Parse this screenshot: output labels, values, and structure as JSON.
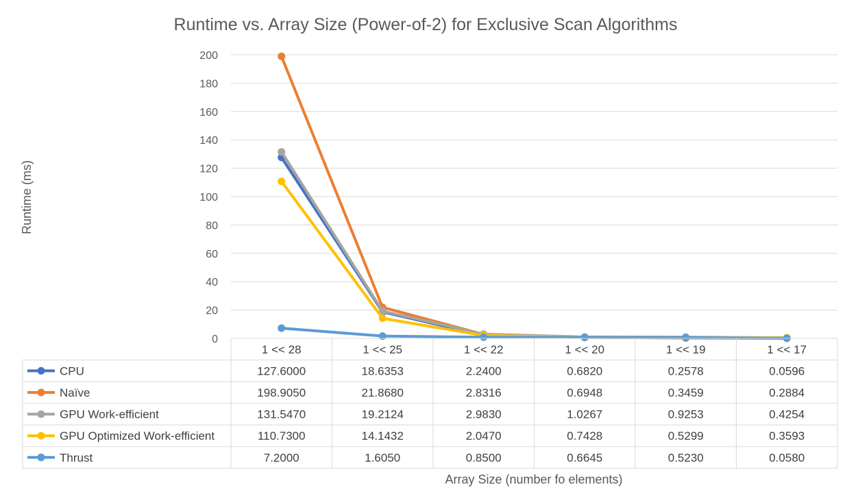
{
  "chart_data": {
    "type": "line",
    "title": "Runtime vs. Array Size (Power-of-2) for Exclusive Scan Algorithms",
    "xlabel": "Array Size (number fo elements)",
    "ylabel": "Runtime (ms)",
    "ylim": [
      0,
      200
    ],
    "y_ticks": [
      "0",
      "20",
      "40",
      "60",
      "80",
      "100",
      "120",
      "140",
      "160",
      "180",
      "200"
    ],
    "grid": true,
    "legend_placement": "data-table",
    "categories": [
      "1 << 28",
      "1 << 25",
      "1 << 22",
      "1 << 20",
      "1 << 19",
      "1 << 17"
    ],
    "series": [
      {
        "name": "CPU",
        "color": "#4472C4",
        "values": [
          127.6,
          18.6353,
          2.24,
          0.682,
          0.2578,
          0.0596
        ],
        "labels": [
          "127.6000",
          "18.6353",
          "2.2400",
          "0.6820",
          "0.2578",
          "0.0596"
        ]
      },
      {
        "name": "Naïve",
        "color": "#ED7D31",
        "values": [
          198.905,
          21.868,
          2.8316,
          0.6948,
          0.3459,
          0.2884
        ],
        "labels": [
          "198.9050",
          "21.8680",
          "2.8316",
          "0.6948",
          "0.3459",
          "0.2884"
        ]
      },
      {
        "name": "GPU Work-efficient",
        "color": "#A5A5A5",
        "values": [
          131.547,
          19.2124,
          2.983,
          1.0267,
          0.9253,
          0.4254
        ],
        "labels": [
          "131.5470",
          "19.2124",
          "2.9830",
          "1.0267",
          "0.9253",
          "0.4254"
        ]
      },
      {
        "name": "GPU Optimized Work-efficient",
        "color": "#FFC000",
        "values": [
          110.73,
          14.1432,
          2.047,
          0.7428,
          0.5299,
          0.3593
        ],
        "labels": [
          "110.7300",
          "14.1432",
          "2.0470",
          "0.7428",
          "0.5299",
          "0.3593"
        ]
      },
      {
        "name": "Thrust",
        "color": "#5B9BD5",
        "values": [
          7.2,
          1.605,
          0.85,
          0.6645,
          0.523,
          0.058
        ],
        "labels": [
          "7.2000",
          "1.6050",
          "0.8500",
          "0.6645",
          "0.5230",
          "0.0580"
        ]
      }
    ]
  }
}
